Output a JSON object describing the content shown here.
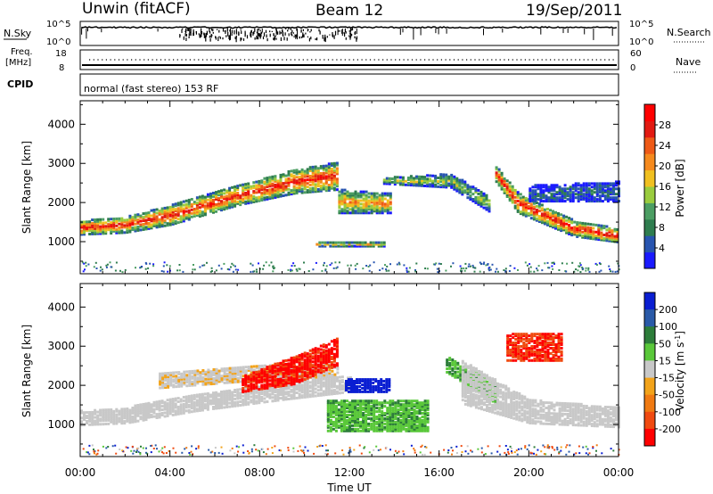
{
  "header": {
    "title": "Unwin (fitACF)",
    "beam": "Beam 12",
    "date": "19/Sep/2011"
  },
  "status": {
    "nsky_label": "N.Sky",
    "nsky_ticks": [
      "10^5",
      "10^0"
    ],
    "nsearch_label": "N.Search",
    "nsearch_ticks": [
      "10^5",
      "10^0"
    ],
    "freq_label_1": "Freq.",
    "freq_label_2": "[MHz]",
    "freq_ticks": [
      "18",
      "8"
    ],
    "nave_label": "Nave",
    "nave_ticks": [
      "60",
      "0"
    ],
    "cpid_label": "CPID",
    "cpid_text": "normal (fast stereo) 153 RF"
  },
  "chart_data": [
    {
      "type": "heatmap",
      "name": "power",
      "xlabel": "Time UT",
      "ylabel": "Slant Range [km]",
      "x_ticks": [
        "00:00",
        "04:00",
        "08:00",
        "12:00",
        "16:00",
        "20:00",
        "00:00"
      ],
      "xlim_hours": [
        0,
        24
      ],
      "y_ticks": [
        1000,
        2000,
        3000,
        4000
      ],
      "ylim": [
        180,
        4600
      ],
      "colorbar": {
        "label": "Power [dB]",
        "ticks": [
          4,
          8,
          12,
          16,
          20,
          24,
          28
        ],
        "range": [
          0,
          32
        ],
        "colors": [
          "#1a1aff",
          "#2855b0",
          "#2f7d4f",
          "#4c9e63",
          "#9acc3e",
          "#f0c020",
          "#f58a1e",
          "#ee5a17",
          "#e21a12",
          "#ff0000"
        ]
      },
      "echo_regions": [
        {
          "start_h": 0.0,
          "end_h": 11.5,
          "range_start_km": [
            1150,
            1200,
            1400,
            1900,
            2200,
            2300
          ],
          "range_end_km": [
            1500,
            1600,
            1900,
            2400,
            2800,
            3000
          ],
          "hours": [
            0,
            2,
            4,
            7,
            9.5,
            11.5
          ],
          "peak_db": 26
        },
        {
          "start_h": 11.5,
          "end_h": 13.8,
          "range_start_km": [
            1700,
            1700
          ],
          "range_end_km": [
            2300,
            2200
          ],
          "hours": [
            11.5,
            13.8
          ],
          "peak_db": 20
        },
        {
          "start_h": 10.5,
          "end_h": 13.5,
          "range_start_km": [
            850,
            850
          ],
          "range_end_km": [
            950,
            950
          ],
          "hours": [
            10.5,
            13.5
          ],
          "peak_db": 18
        },
        {
          "start_h": 13.5,
          "end_h": 18.3,
          "range_start_km": [
            2450,
            2350,
            1700
          ],
          "range_end_km": [
            2600,
            2700,
            2100
          ],
          "hours": [
            13.5,
            16.5,
            18.3
          ],
          "peak_db": 14
        },
        {
          "start_h": 18.5,
          "end_h": 24.0,
          "range_start_km": [
            2500,
            1700,
            1100,
            950
          ],
          "range_end_km": [
            2900,
            2200,
            1500,
            1300
          ],
          "hours": [
            18.5,
            19.5,
            22,
            24
          ],
          "peak_db": 27
        },
        {
          "start_h": 20.0,
          "end_h": 24.0,
          "range_start_km": [
            2000,
            2000
          ],
          "range_end_km": [
            2400,
            2500
          ],
          "hours": [
            20,
            24
          ],
          "peak_db": 6
        }
      ]
    },
    {
      "type": "heatmap",
      "name": "velocity",
      "xlabel": "Time UT",
      "ylabel": "Slant Range [km]",
      "x_ticks": [
        "00:00",
        "04:00",
        "08:00",
        "12:00",
        "16:00",
        "20:00",
        "00:00"
      ],
      "xlim_hours": [
        0,
        24
      ],
      "y_ticks": [
        1000,
        2000,
        3000,
        4000
      ],
      "ylim": [
        180,
        4600
      ],
      "colorbar": {
        "label": "Velocity [m s^-1]",
        "ticks": [
          200,
          100,
          50,
          15,
          -15,
          -50,
          -100,
          -200
        ],
        "colors": [
          "#0a1ed2",
          "#2a5aa8",
          "#2d7d3a",
          "#5ac83a",
          "#c8c8c8",
          "#f2a31a",
          "#f07a12",
          "#f04a10",
          "#ff0000"
        ]
      },
      "echo_regions": [
        {
          "start_h": 0.0,
          "end_h": 12.0,
          "range_start_km": [
            950,
            1000,
            1300,
            1600,
            1800
          ],
          "range_end_km": [
            1350,
            1400,
            1750,
            2050,
            2200
          ],
          "hours": [
            0,
            2,
            5,
            9,
            12
          ],
          "velocity_ms": 0
        },
        {
          "start_h": 3.5,
          "end_h": 11.5,
          "range_start_km": [
            1900,
            2100,
            2200
          ],
          "range_end_km": [
            2300,
            2500,
            2500
          ],
          "hours": [
            3.5,
            8,
            11.5
          ],
          "velocity_ms": -10
        },
        {
          "start_h": 7.2,
          "end_h": 11.5,
          "range_start_km": [
            1800,
            2000,
            2500
          ],
          "range_end_km": [
            2200,
            2700,
            3200
          ],
          "hours": [
            7.2,
            9.5,
            11.5
          ],
          "velocity_ms": -220
        },
        {
          "start_h": 11.8,
          "end_h": 13.8,
          "range_start_km": [
            1800,
            1800
          ],
          "range_end_km": [
            2150,
            2150
          ],
          "hours": [
            11.8,
            13.8
          ],
          "velocity_ms": 220
        },
        {
          "start_h": 11.0,
          "end_h": 15.5,
          "range_start_km": [
            800,
            800
          ],
          "range_end_km": [
            1600,
            1600
          ],
          "hours": [
            11,
            15.5
          ],
          "velocity_ms": 45
        },
        {
          "start_h": 16.3,
          "end_h": 18.5,
          "range_start_km": [
            2300,
            1500
          ],
          "range_end_km": [
            2700,
            2000
          ],
          "hours": [
            16.3,
            18.5
          ],
          "velocity_ms": 45
        },
        {
          "start_h": 17.0,
          "end_h": 24.0,
          "range_start_km": [
            1500,
            1000,
            900
          ],
          "range_end_km": [
            2600,
            1600,
            1400
          ],
          "hours": [
            17,
            20,
            24
          ],
          "velocity_ms": 0
        },
        {
          "start_h": 19.0,
          "end_h": 21.5,
          "range_start_km": [
            2600,
            2600
          ],
          "range_end_km": [
            3300,
            3300
          ],
          "hours": [
            19,
            21.5
          ],
          "velocity_ms": -200
        }
      ]
    }
  ]
}
